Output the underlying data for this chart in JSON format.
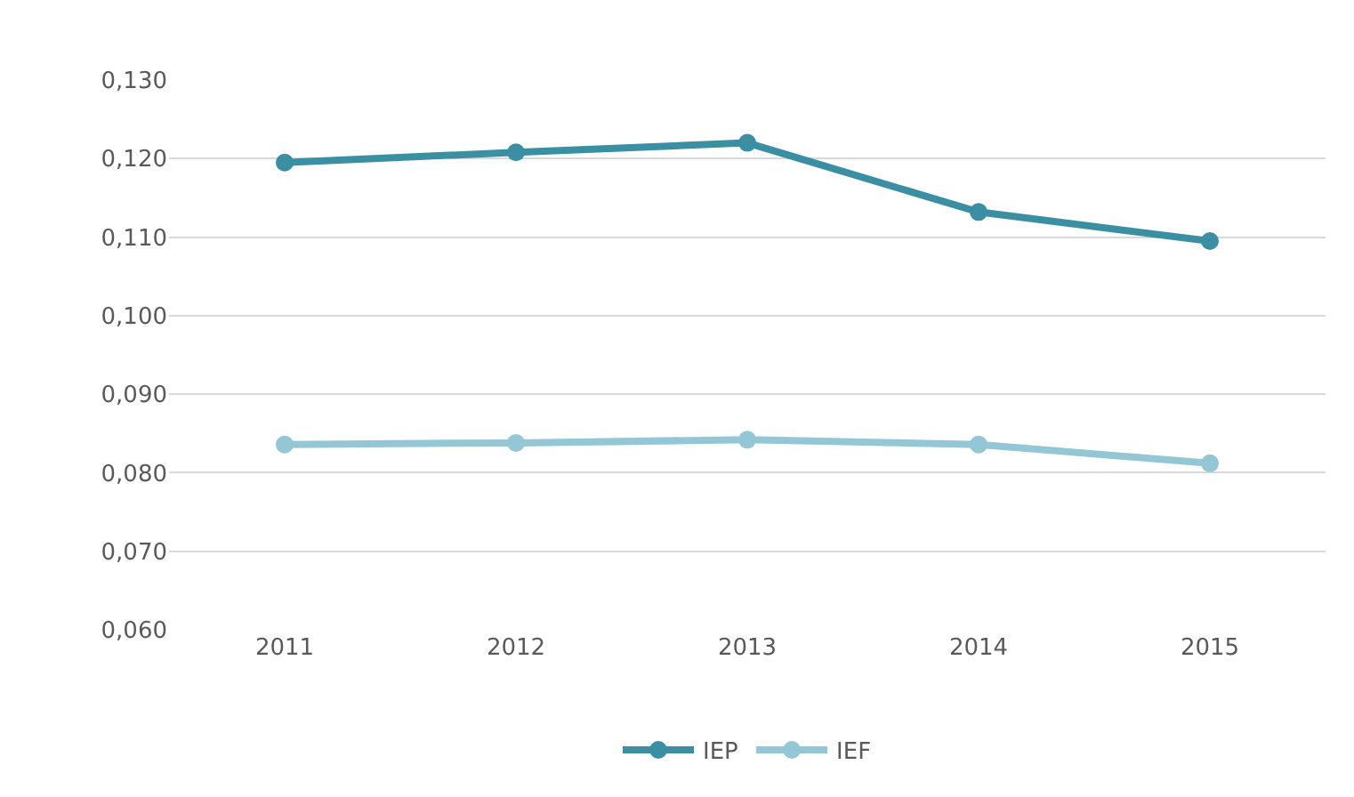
{
  "chart_data": {
    "type": "line",
    "categories": [
      "2011",
      "2012",
      "2013",
      "2014",
      "2015"
    ],
    "series": [
      {
        "name": "IEP",
        "color": "#3a8fa3",
        "values": [
          0.1195,
          0.1208,
          0.122,
          0.1132,
          0.1095
        ]
      },
      {
        "name": "IEF",
        "color": "#93c7d6",
        "values": [
          0.0836,
          0.0838,
          0.0842,
          0.0836,
          0.0812
        ]
      }
    ],
    "ylim": [
      0.06,
      0.13
    ],
    "yticks": [
      {
        "value": 0.06,
        "label": "0,060"
      },
      {
        "value": 0.07,
        "label": "0,070"
      },
      {
        "value": 0.08,
        "label": "0,080"
      },
      {
        "value": 0.09,
        "label": "0,090"
      },
      {
        "value": 0.1,
        "label": "0,100"
      },
      {
        "value": 0.11,
        "label": "0,110"
      },
      {
        "value": 0.12,
        "label": "0,120"
      },
      {
        "value": 0.13,
        "label": "0,130"
      }
    ],
    "grid": "y",
    "legend": "bottom",
    "marker": "circle",
    "line_style": "solid"
  }
}
